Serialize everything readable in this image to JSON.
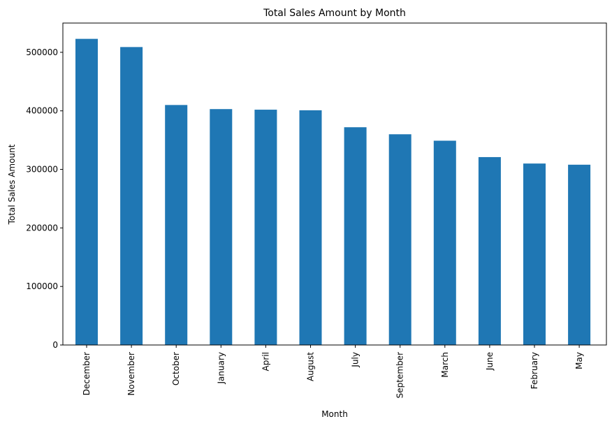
{
  "chart_data": {
    "type": "bar",
    "title": "Total Sales Amount by Month",
    "xlabel": "Month",
    "ylabel": "Total Sales Amount",
    "categories": [
      "December",
      "November",
      "October",
      "January",
      "April",
      "August",
      "July",
      "September",
      "March",
      "June",
      "February",
      "May"
    ],
    "values": [
      523000,
      509000,
      410000,
      403000,
      402000,
      401000,
      372000,
      360000,
      349000,
      321000,
      310000,
      308000
    ],
    "ylim": [
      0,
      550000
    ],
    "yticks": [
      0,
      100000,
      200000,
      300000,
      400000,
      500000
    ],
    "ytick_labels": [
      "0",
      "100000",
      "200000",
      "300000",
      "400000",
      "500000"
    ],
    "bar_color": "#1f77b4",
    "grid": false,
    "legend": "none"
  }
}
